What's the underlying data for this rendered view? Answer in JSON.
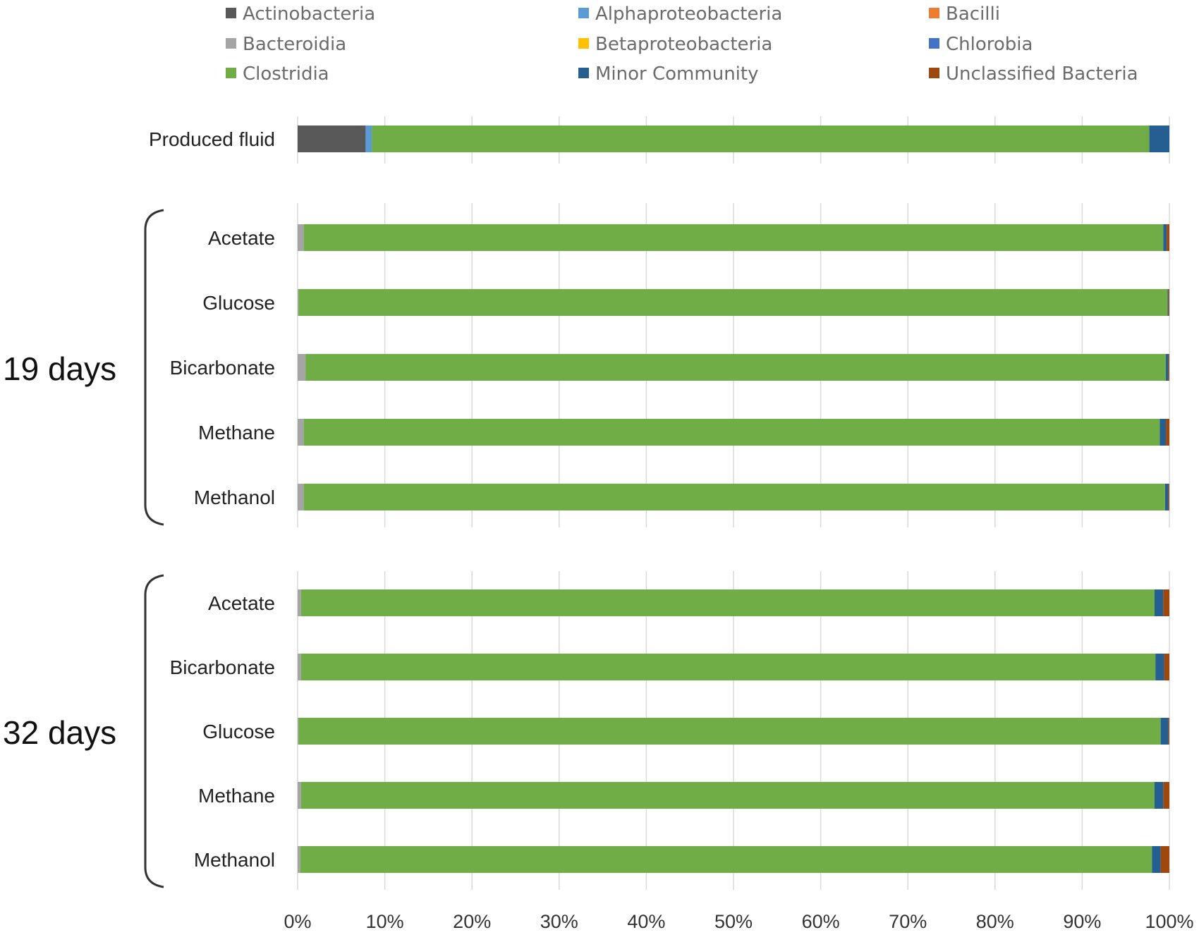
{
  "chart_data": {
    "type": "bar",
    "orientation": "horizontal",
    "stacked": "percent",
    "title": "",
    "xlabel": "",
    "ylabel": "",
    "xlim": [
      0,
      100
    ],
    "x_ticks": [
      "0%",
      "10%",
      "20%",
      "30%",
      "40%",
      "50%",
      "60%",
      "70%",
      "80%",
      "90%",
      "100%"
    ],
    "legend_position": "top",
    "series": [
      {
        "name": "Actinobacteria",
        "color": "#595959"
      },
      {
        "name": "Alphaproteobacteria",
        "color": "#5b9bd5"
      },
      {
        "name": "Bacilli",
        "color": "#ed7d31"
      },
      {
        "name": "Bacteroidia",
        "color": "#a5a5a5"
      },
      {
        "name": "Betaproteobacteria",
        "color": "#ffc000"
      },
      {
        "name": "Chlorobia",
        "color": "#4472c4"
      },
      {
        "name": "Clostridia",
        "color": "#70ad47"
      },
      {
        "name": "Minor Community",
        "color": "#255e91"
      },
      {
        "name": "Unclassified Bacteria",
        "color": "#9e480e"
      }
    ],
    "groups": [
      {
        "label": "",
        "bars": [
          {
            "category": "Produced fluid",
            "values": [
              7.8,
              0.7,
              0,
              0,
              0,
              0,
              89.2,
              2.3,
              0
            ]
          }
        ]
      },
      {
        "label": "19 days",
        "bars": [
          {
            "category": "Acetate",
            "values": [
              0,
              0,
              0,
              0.7,
              0,
              0,
              98.6,
              0.4,
              0.3
            ]
          },
          {
            "category": "Glucose",
            "values": [
              0,
              0,
              0,
              0.1,
              0,
              0,
              99.7,
              0.1,
              0.1
            ]
          },
          {
            "category": "Bicarbonate",
            "values": [
              0,
              0,
              0,
              0.9,
              0,
              0,
              98.7,
              0.3,
              0.1
            ]
          },
          {
            "category": "Methane",
            "values": [
              0,
              0,
              0,
              0.7,
              0,
              0,
              98.2,
              0.7,
              0.4
            ]
          },
          {
            "category": "Methanol",
            "values": [
              0,
              0,
              0,
              0.7,
              0,
              0,
              98.8,
              0.4,
              0.1
            ]
          }
        ]
      },
      {
        "label": "32 days",
        "bars": [
          {
            "category": "Acetate",
            "values": [
              0,
              0,
              0,
              0.4,
              0,
              0,
              97.9,
              1.0,
              0.7
            ]
          },
          {
            "category": "Bicarbonate",
            "values": [
              0,
              0,
              0,
              0.4,
              0,
              0,
              98.0,
              1.0,
              0.6
            ]
          },
          {
            "category": "Glucose",
            "values": [
              0,
              0,
              0,
              0.1,
              0,
              0,
              98.9,
              0.9,
              0.1
            ]
          },
          {
            "category": "Methane",
            "values": [
              0,
              0,
              0,
              0.4,
              0,
              0,
              97.9,
              1.0,
              0.7
            ]
          },
          {
            "category": "Methanol",
            "values": [
              0,
              0,
              0,
              0.3,
              0,
              0,
              97.7,
              1.0,
              1.0
            ]
          }
        ]
      }
    ]
  }
}
